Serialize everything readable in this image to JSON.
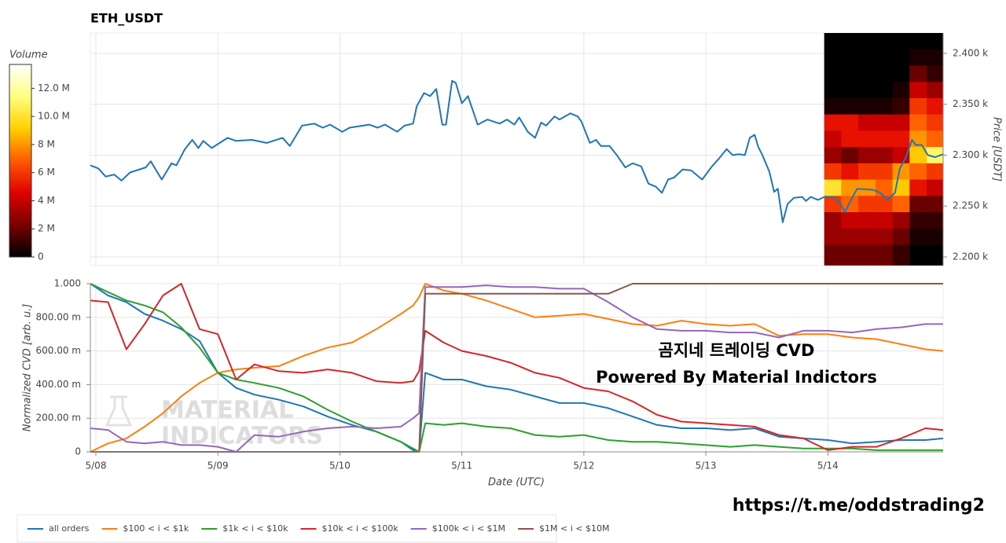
{
  "chart_data": [
    {
      "type": "line",
      "title": "ETH_USDT",
      "y_label": "Price [USDT]",
      "color": "#1f77b4",
      "grid": true,
      "x": [
        -0.045,
        0.02,
        0.08,
        0.15,
        0.21,
        0.28,
        0.41,
        0.45,
        0.54,
        0.62,
        0.66,
        0.73,
        0.79,
        0.84,
        0.88,
        0.95,
        1.08,
        1.15,
        1.28,
        1.4,
        1.53,
        1.59,
        1.63,
        1.69,
        1.79,
        1.86,
        1.92,
        2.02,
        2.08,
        2.24,
        2.31,
        2.37,
        2.47,
        2.53,
        2.6,
        2.63,
        2.69,
        2.74,
        2.79,
        2.84,
        2.87,
        2.92,
        2.95,
        3.0,
        3.05,
        3.13,
        3.21,
        3.31,
        3.37,
        3.43,
        3.47,
        3.54,
        3.6,
        3.65,
        3.69,
        3.76,
        3.8,
        3.89,
        3.95,
        3.98,
        4.05,
        4.1,
        4.14,
        4.21,
        4.27,
        4.34,
        4.4,
        4.47,
        4.53,
        4.59,
        4.64,
        4.69,
        4.74,
        4.81,
        4.88,
        4.97,
        5.05,
        5.11,
        5.17,
        5.22,
        5.27,
        5.32,
        5.36,
        5.4,
        5.43,
        5.46,
        5.52,
        5.56,
        5.59,
        5.63,
        5.67,
        5.72,
        5.79,
        5.82,
        5.86,
        5.92,
        5.97,
        6.04,
        6.1,
        6.14,
        6.19,
        6.24,
        6.37,
        6.43,
        6.49,
        6.55,
        6.59,
        6.64,
        6.69,
        6.72,
        6.77,
        6.82,
        6.88,
        6.945
      ],
      "values": [
        2290,
        2287,
        2279,
        2281,
        2275,
        2283,
        2288,
        2294,
        2276,
        2292,
        2290,
        2306,
        2315,
        2307,
        2314,
        2307,
        2317,
        2314,
        2315,
        2312,
        2317,
        2309,
        2317,
        2329,
        2331,
        2327,
        2330,
        2323,
        2327,
        2330,
        2327,
        2330,
        2323,
        2329,
        2331,
        2348,
        2361,
        2358,
        2365,
        2330,
        2330,
        2373,
        2371,
        2351,
        2358,
        2330,
        2335,
        2331,
        2335,
        2330,
        2337,
        2323,
        2317,
        2332,
        2329,
        2338,
        2335,
        2341,
        2338,
        2333,
        2312,
        2315,
        2309,
        2309,
        2300,
        2288,
        2292,
        2289,
        2272,
        2269,
        2263,
        2276,
        2278,
        2286,
        2285,
        2276,
        2289,
        2297,
        2306,
        2300,
        2301,
        2300,
        2317,
        2320,
        2308,
        2301,
        2284,
        2264,
        2267,
        2234,
        2252,
        2258,
        2259,
        2255,
        2259,
        2256,
        2259,
        2259,
        2253,
        2244,
        2256,
        2267,
        2266,
        2263,
        2256,
        2263,
        2287,
        2298,
        2315,
        2310,
        2310,
        2300,
        2298,
        2301
      ],
      "xlim": [
        -0.045,
        6.945
      ],
      "xticks": [
        0,
        1,
        2,
        3,
        4,
        5,
        6
      ],
      "ylim": [
        2191.5,
        2420
      ],
      "yticks": [
        {
          "value": 2200,
          "label": "2.200 k"
        },
        {
          "value": 2250,
          "label": "2.250 k"
        },
        {
          "value": 2300,
          "label": "2.300 k"
        },
        {
          "value": 2350,
          "label": "2.350 k"
        },
        {
          "value": 2400,
          "label": "2.400 k"
        }
      ],
      "heatmap": {
        "x_edges": [
          5.97,
          6.11,
          6.25,
          6.39,
          6.53,
          6.67,
          6.81,
          6.945
        ],
        "y_edges": [
          2420,
          2404,
          2388,
          2372,
          2356,
          2340,
          2324,
          2308,
          2292,
          2276,
          2260,
          2244,
          2228,
          2212,
          2192
        ],
        "values": [
          [
            0,
            0,
            0,
            0,
            0,
            0,
            0
          ],
          [
            0,
            0,
            0,
            0,
            0,
            500000,
            500000
          ],
          [
            0,
            0,
            0,
            0,
            0,
            2000000,
            1000000
          ],
          [
            0,
            0,
            0,
            0,
            500000,
            4000000,
            3000000
          ],
          [
            500000,
            500000,
            500000,
            500000,
            1000000,
            6000000,
            5000000
          ],
          [
            5000000,
            5000000,
            4000000,
            4000000,
            4000000,
            7000000,
            6000000
          ],
          [
            4000000,
            5000000,
            5000000,
            5000000,
            5000000,
            8000000,
            7000000
          ],
          [
            3000000,
            2000000,
            3000000,
            3000000,
            4000000,
            9000000,
            11000000
          ],
          [
            6000000,
            5000000,
            6000000,
            6000000,
            8000000,
            7000000,
            6000000
          ],
          [
            10000000,
            8000000,
            8000000,
            7000000,
            9000000,
            5000000,
            4000000
          ],
          [
            6000000,
            7000000,
            6000000,
            6000000,
            7000000,
            2000000,
            2000000
          ],
          [
            3000000,
            4000000,
            4000000,
            4000000,
            3000000,
            1000000,
            1000000
          ],
          [
            3000000,
            3000000,
            3000000,
            3000000,
            2000000,
            500000,
            500000
          ],
          [
            2000000,
            2000000,
            2000000,
            2000000,
            1000000,
            0,
            0
          ]
        ]
      },
      "colorbar": {
        "title": "Volume",
        "lim": [
          0,
          13700000
        ],
        "ticks": [
          0,
          {
            "value": 2000000,
            "label": "2 M"
          },
          {
            "value": 4000000,
            "label": "4 M"
          },
          {
            "value": 6000000,
            "label": "6 M"
          },
          {
            "value": 8000000,
            "label": "8 M"
          },
          {
            "value": 10000000,
            "label": "10.0 M"
          },
          {
            "value": 12000000,
            "label": "12.0 M"
          }
        ],
        "colormap": [
          "#000000",
          "#7a0000",
          "#e00000",
          "#ff5a00",
          "#ffd000",
          "#ffff80",
          "#ffffff"
        ]
      }
    },
    {
      "type": "line",
      "x_label": "Date (UTC)",
      "y_label": "Normalized CVD [arb. u.]",
      "grid": true,
      "legend": "bottom-left",
      "x": [
        -0.045,
        0.1,
        0.25,
        0.4,
        0.55,
        0.7,
        0.85,
        1.0,
        1.15,
        1.3,
        1.5,
        1.7,
        1.9,
        2.1,
        2.3,
        2.5,
        2.6,
        2.65,
        2.7,
        2.85,
        3.0,
        3.2,
        3.4,
        3.6,
        3.8,
        4.0,
        4.2,
        4.4,
        4.6,
        4.8,
        5.0,
        5.2,
        5.4,
        5.6,
        5.8,
        6.0,
        6.2,
        6.4,
        6.6,
        6.8,
        6.945
      ],
      "xlim": [
        -0.045,
        6.945
      ],
      "xticks": [
        {
          "value": 0,
          "label": "5/08"
        },
        {
          "value": 1,
          "label": "5/09"
        },
        {
          "value": 2,
          "label": "5/10"
        },
        {
          "value": 3,
          "label": "5/11"
        },
        {
          "value": 4,
          "label": "5/12"
        },
        {
          "value": 5,
          "label": "5/13"
        },
        {
          "value": 6,
          "label": "5/14"
        }
      ],
      "ylim": [
        0,
        1
      ],
      "yticks": [
        0,
        {
          "value": 0.2,
          "label": "200.00 m"
        },
        {
          "value": 0.4,
          "label": "400.00 m"
        },
        {
          "value": 0.6,
          "label": "600.00 m"
        },
        {
          "value": 0.8,
          "label": "800.00 m"
        },
        {
          "value": 1,
          "label": "1.000"
        }
      ],
      "series": [
        {
          "name": "all orders",
          "color": "#1f77b4",
          "values": [
            1.0,
            0.93,
            0.89,
            0.82,
            0.78,
            0.73,
            0.66,
            0.47,
            0.38,
            0.34,
            0.31,
            0.27,
            0.21,
            0.16,
            0.12,
            0.06,
            0.01,
            0.0,
            0.47,
            0.43,
            0.43,
            0.39,
            0.37,
            0.33,
            0.29,
            0.29,
            0.26,
            0.21,
            0.16,
            0.14,
            0.14,
            0.13,
            0.14,
            0.09,
            0.08,
            0.07,
            0.05,
            0.06,
            0.07,
            0.07,
            0.08
          ]
        },
        {
          "name": "$100 < i < $1k",
          "color": "#ff7f0e",
          "values": [
            0.0,
            0.05,
            0.08,
            0.15,
            0.23,
            0.33,
            0.41,
            0.47,
            0.49,
            0.5,
            0.51,
            0.57,
            0.62,
            0.65,
            0.73,
            0.82,
            0.87,
            0.92,
            1.0,
            0.96,
            0.94,
            0.9,
            0.85,
            0.8,
            0.81,
            0.82,
            0.79,
            0.76,
            0.75,
            0.78,
            0.76,
            0.75,
            0.76,
            0.69,
            0.7,
            0.7,
            0.68,
            0.67,
            0.64,
            0.61,
            0.6
          ]
        },
        {
          "name": "$1k < i < $10k",
          "color": "#2ca02c",
          "values": [
            1.0,
            0.95,
            0.9,
            0.87,
            0.83,
            0.74,
            0.62,
            0.47,
            0.43,
            0.41,
            0.38,
            0.33,
            0.25,
            0.18,
            0.12,
            0.06,
            0.02,
            0.0,
            0.17,
            0.16,
            0.17,
            0.15,
            0.14,
            0.1,
            0.09,
            0.1,
            0.07,
            0.06,
            0.06,
            0.05,
            0.04,
            0.03,
            0.04,
            0.03,
            0.02,
            0.02,
            0.02,
            0.01,
            0.01,
            0.01,
            0.01
          ]
        },
        {
          "name": "$10k < i < $100k",
          "color": "#d62728",
          "values": [
            0.9,
            0.89,
            0.61,
            0.76,
            0.93,
            1.0,
            0.73,
            0.7,
            0.43,
            0.52,
            0.48,
            0.47,
            0.49,
            0.47,
            0.42,
            0.41,
            0.42,
            0.48,
            0.72,
            0.65,
            0.6,
            0.57,
            0.53,
            0.47,
            0.44,
            0.38,
            0.36,
            0.3,
            0.22,
            0.18,
            0.17,
            0.16,
            0.15,
            0.1,
            0.08,
            0.01,
            0.03,
            0.03,
            0.08,
            0.14,
            0.13
          ]
        },
        {
          "name": "$100k < i < $1M",
          "color": "#9467bd",
          "values": [
            0.14,
            0.13,
            0.06,
            0.05,
            0.06,
            0.04,
            0.04,
            0.03,
            0.0,
            0.1,
            0.09,
            0.12,
            0.14,
            0.15,
            0.14,
            0.15,
            0.2,
            0.23,
            0.98,
            0.98,
            0.98,
            0.99,
            0.98,
            0.98,
            0.97,
            0.97,
            0.89,
            0.8,
            0.73,
            0.72,
            0.72,
            0.71,
            0.71,
            0.68,
            0.72,
            0.72,
            0.71,
            0.73,
            0.74,
            0.76,
            0.76
          ]
        },
        {
          "name": "$1M < i < $10M",
          "color": "#8c564b",
          "values": [
            0,
            0,
            0,
            0,
            0,
            0,
            0,
            0,
            0,
            0,
            0,
            0,
            0,
            0,
            0,
            0,
            0,
            0,
            0.94,
            0.94,
            0.94,
            0.94,
            0.94,
            0.94,
            0.94,
            0.94,
            0.94,
            1.0,
            1.0,
            1.0,
            1.0,
            1.0,
            1.0,
            1.0,
            1.0,
            1.0,
            1.0,
            1.0,
            1.0,
            1.0,
            1.0
          ]
        }
      ],
      "watermark": [
        "MATERIAL",
        "INDICATORS"
      ],
      "annotations": [
        "곰지네 트레이딩 CVD",
        "Powered By Material Indictors"
      ]
    }
  ],
  "footer": "https://t.me/oddstrading2"
}
